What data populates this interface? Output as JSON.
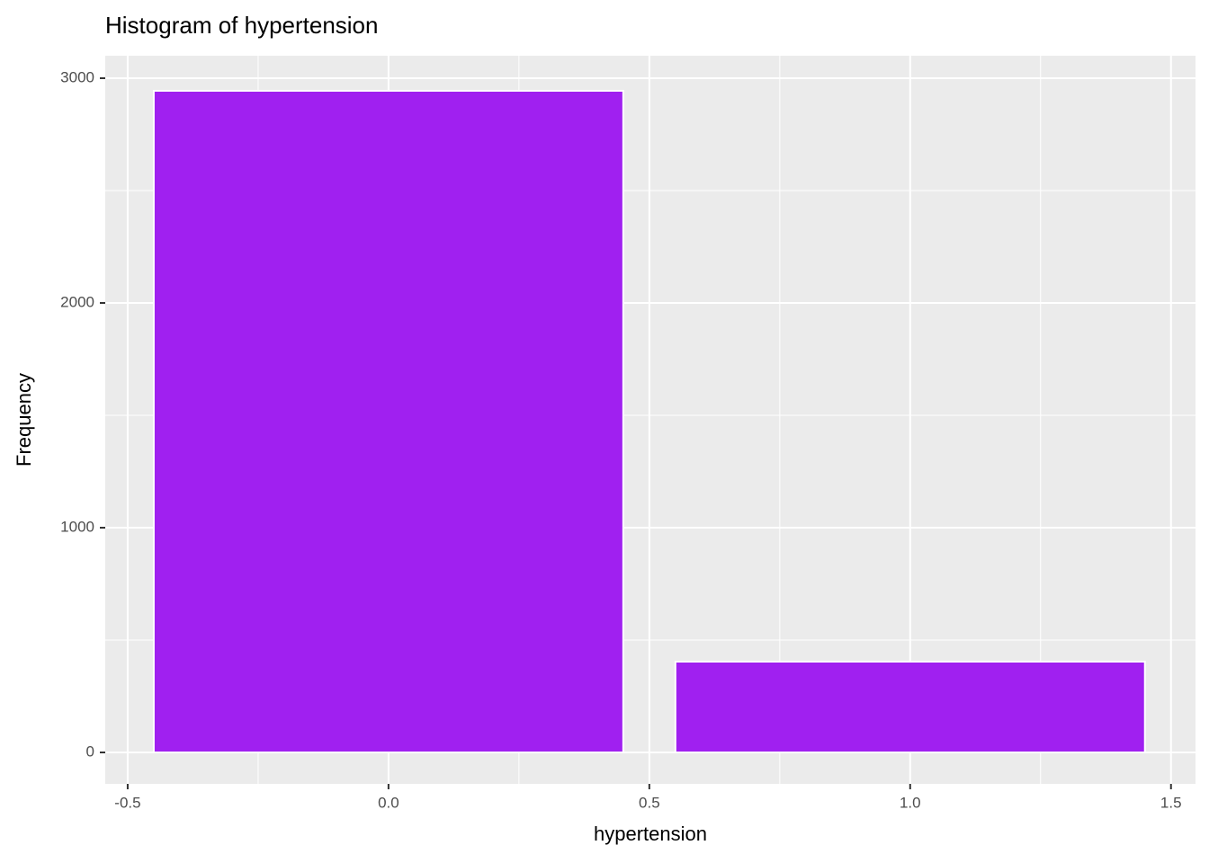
{
  "chart_data": {
    "type": "histogram",
    "title": "Histogram of hypertension",
    "xlabel": "hypertension",
    "ylabel": "Frequency",
    "x": [
      0,
      1
    ],
    "bar_width": 0.9,
    "values": [
      2944,
      404
    ],
    "color": "#a020f0",
    "xlim": [
      -0.543,
      1.547
    ],
    "ylim": [
      -140,
      3100
    ],
    "xticks": [
      -0.5,
      {
        "value": 0,
        "label": "0.0"
      },
      0.5,
      {
        "value": 1,
        "label": "1.0"
      },
      1.5
    ],
    "yticks": [
      0,
      1000,
      2000,
      3000
    ],
    "xminor": [
      -0.25,
      0.25,
      0.75,
      1.25
    ],
    "yminor": [
      500,
      1500,
      2500
    ],
    "grid": true
  }
}
